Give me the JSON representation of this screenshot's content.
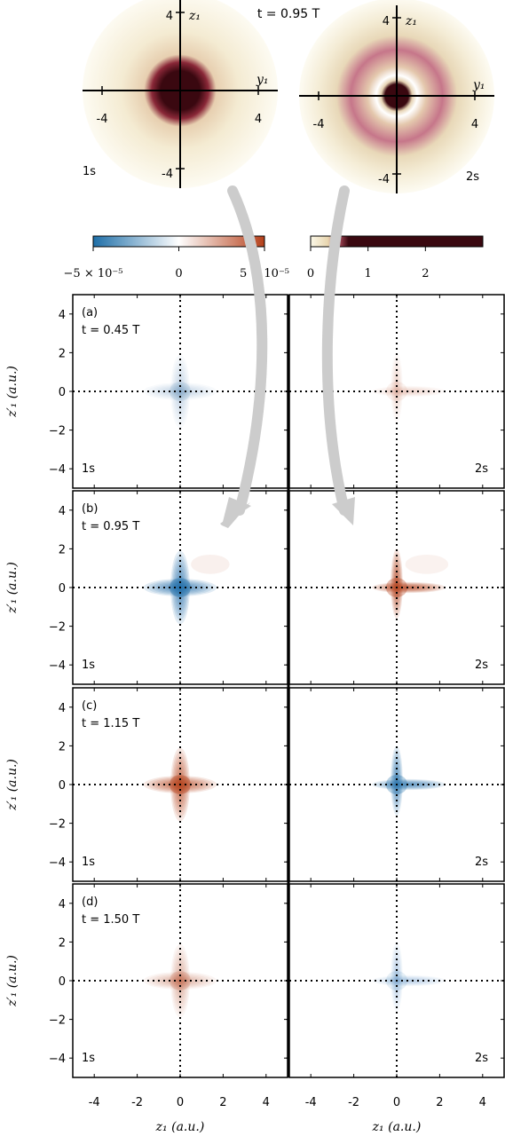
{
  "chart_data": {
    "type": "heatmap",
    "top_title": "t = 0.95 T",
    "top_panels": [
      {
        "label": "1s",
        "xlabel": "y₁",
        "ylabel": "z₁",
        "ticks": [
          "4",
          "-4",
          "4",
          "-4"
        ]
      },
      {
        "label": "2s",
        "xlabel": "y₁",
        "ylabel": "z₁",
        "ticks": [
          "4",
          "-4",
          "4",
          "-4"
        ]
      }
    ],
    "colorbar_left": {
      "colors": [
        "#1f6fa8",
        "#ffffff",
        "#b5401a"
      ],
      "tick_labels": [
        "−5 × 10⁻⁵",
        "0",
        "5 × 10⁻⁵"
      ],
      "ticks": [
        -5e-05,
        0,
        5e-05
      ]
    },
    "colorbar_right": {
      "colors": [
        "#fbf8e8",
        "#e8d6b0",
        "#b05060",
        "#3a0810"
      ],
      "tick_labels": [
        "0",
        "1",
        "2"
      ],
      "range": [
        0,
        3
      ]
    },
    "panels": [
      {
        "tag": "(a)",
        "time": "t = 0.45 T",
        "left": {
          "label": "1s",
          "sign": -1,
          "amp": 0.25
        },
        "right": {
          "label": "2s",
          "sign": 1,
          "amp": 0.2
        }
      },
      {
        "tag": "(b)",
        "time": "t = 0.95 T",
        "left": {
          "label": "1s",
          "sign": -1,
          "amp": 1.0
        },
        "right": {
          "label": "2s",
          "sign": 1,
          "amp": 1.0
        }
      },
      {
        "tag": "(c)",
        "time": "t = 1.15 T",
        "left": {
          "label": "1s",
          "sign": 1,
          "amp": 0.95
        },
        "right": {
          "label": "2s",
          "sign": -1,
          "amp": 0.9
        }
      },
      {
        "tag": "(d)",
        "time": "t = 1.50 T",
        "left": {
          "label": "1s",
          "sign": 1,
          "amp": 0.4
        },
        "right": {
          "label": "2s",
          "sign": -1,
          "amp": 0.3
        }
      }
    ],
    "xlim": [
      -5,
      5
    ],
    "ylim": [
      -5,
      5
    ],
    "xticks": [
      -4,
      -2,
      0,
      2,
      4
    ],
    "yticks": [
      4,
      2,
      0,
      -2,
      -4
    ],
    "xtick_labels": [
      "-4",
      "-2",
      "0",
      "2",
      "4"
    ],
    "ytick_labels": [
      "4",
      "2",
      "0",
      "−2",
      "−4"
    ],
    "xlabel": "z₁ (a.u.)",
    "ylabel": "z′₁ (a.u.)"
  }
}
